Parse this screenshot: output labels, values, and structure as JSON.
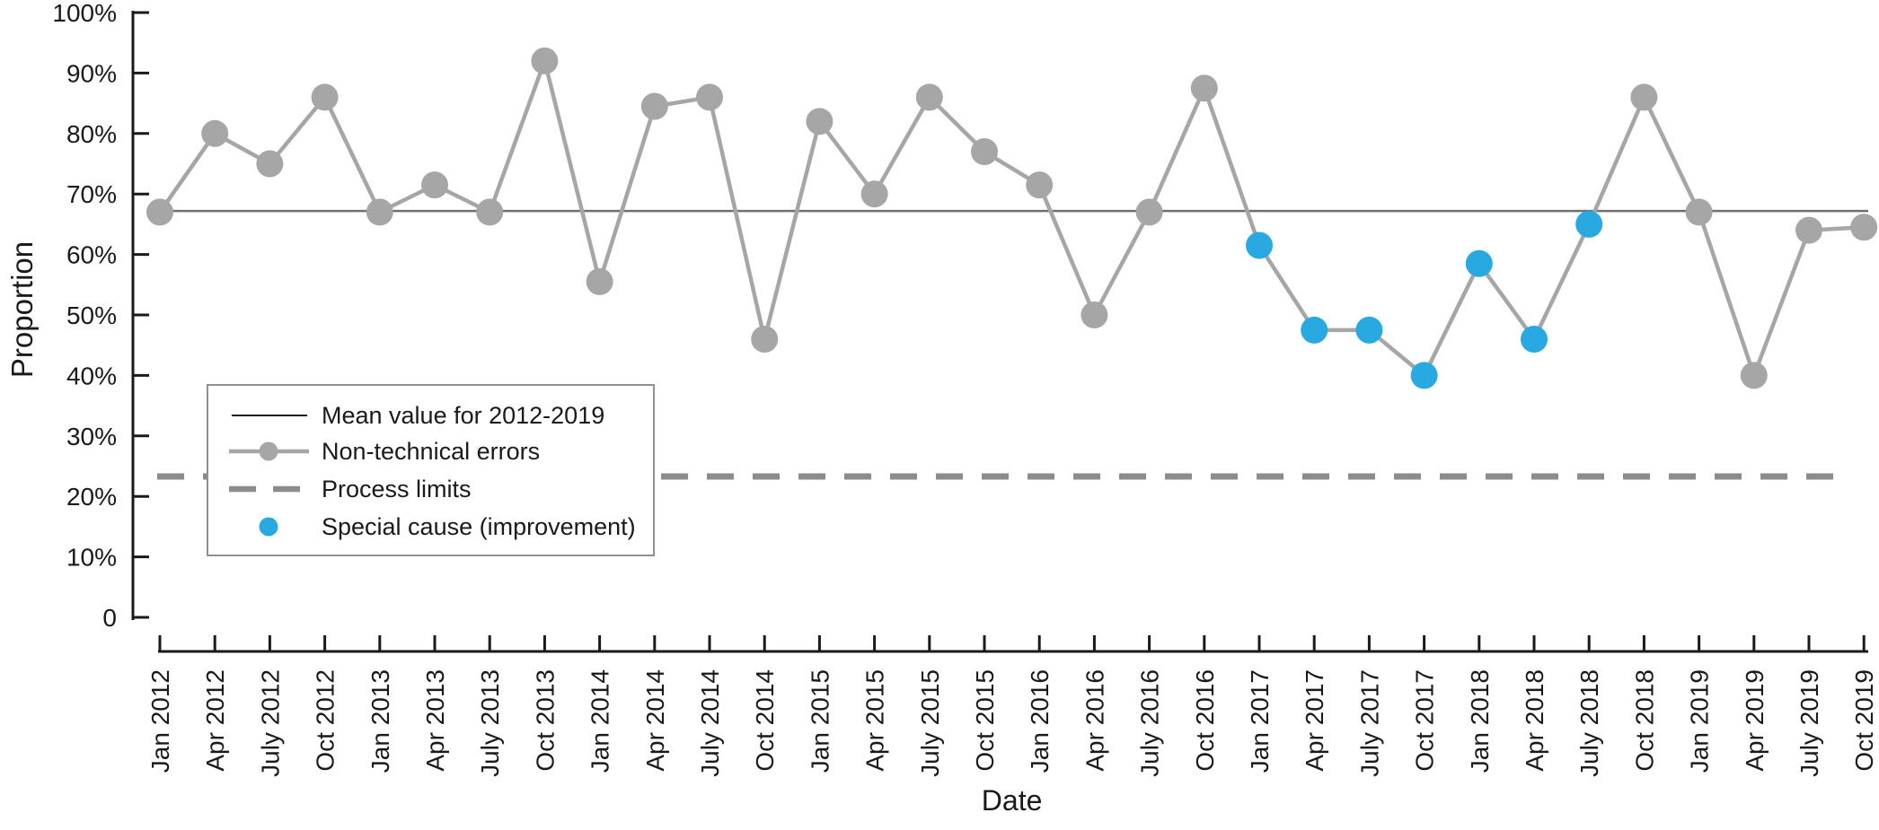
{
  "chart_data": {
    "type": "line",
    "title": "",
    "xlabel": "Date",
    "ylabel": "Proportion",
    "ylim": [
      0,
      100
    ],
    "grid": false,
    "legend_position": "inside-lower-left",
    "ytick_labels": [
      "100%",
      "90%",
      "80%",
      "70%",
      "60%",
      "50%",
      "40%",
      "30%",
      "20%",
      "10%",
      "0"
    ],
    "categories": [
      "Jan 2012",
      "Apr 2012",
      "July 2012",
      "Oct 2012",
      "Jan 2013",
      "Apr 2013",
      "July 2013",
      "Oct 2013",
      "Jan 2014",
      "Apr 2014",
      "July 2014",
      "Oct 2014",
      "Jan 2015",
      "Apr 2015",
      "July 2015",
      "Oct 2015",
      "Jan 2016",
      "Apr 2016",
      "July 2016",
      "Oct 2016",
      "Jan 2017",
      "Apr 2017",
      "July 2017",
      "Oct 2017",
      "Jan 2018",
      "Apr 2018",
      "July 2018",
      "Oct 2018",
      "Jan 2019",
      "Apr 2019",
      "July 2019",
      "Oct 2019"
    ],
    "series": [
      {
        "name": "Non-technical errors",
        "values": [
          67,
          80,
          75,
          86,
          67,
          71.5,
          67,
          92,
          55.5,
          84.5,
          86,
          46,
          82,
          70,
          86,
          77,
          71.5,
          50,
          67,
          87.5,
          61.5,
          47.5,
          47.5,
          40,
          58.5,
          46,
          65,
          86,
          67,
          40,
          64,
          64.5
        ]
      }
    ],
    "special_cause": {
      "name": "Special cause (improvement)",
      "indices": [
        20,
        21,
        22,
        23,
        24,
        25,
        26
      ]
    },
    "mean_line": {
      "name": "Mean value for 2012-2019",
      "value": 67.2
    },
    "process_limits": {
      "name": "Process limits",
      "lower_value": 23.3
    },
    "colors": {
      "series": "#a6a6a6",
      "special_cause": "#29a9e1",
      "mean_line": "#6f6f6f",
      "mean_line_legend": "#1f1f1f",
      "process_limits": "#8c8c8c",
      "axis": "#1a1a1a",
      "text": "#1a1a1a",
      "legend_border": "#909090",
      "background": "#ffffff"
    }
  }
}
